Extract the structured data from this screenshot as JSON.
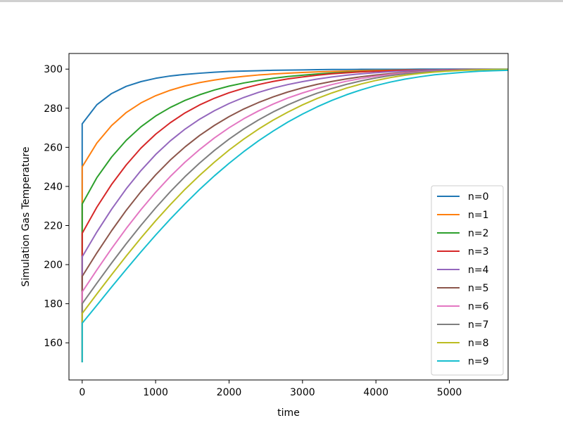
{
  "chart_data": {
    "type": "line",
    "title": "",
    "xlabel": "time",
    "ylabel": "Simulation Gas Temperature",
    "xlim": [
      -180,
      5800
    ],
    "ylim": [
      141,
      308
    ],
    "xticks": [
      0,
      1000,
      2000,
      3000,
      4000,
      5000
    ],
    "yticks": [
      160,
      180,
      200,
      220,
      240,
      260,
      280,
      300
    ],
    "xtick_labels": [
      "0",
      "1000",
      "2000",
      "3000",
      "4000",
      "5000"
    ],
    "ytick_labels": [
      "160",
      "180",
      "200",
      "220",
      "240",
      "260",
      "280",
      "300"
    ],
    "grid": false,
    "legend_position": "lower right",
    "x": [
      0,
      200,
      400,
      600,
      800,
      1000,
      1200,
      1400,
      1600,
      1800,
      2000,
      2200,
      2400,
      2600,
      2800,
      3000,
      3200,
      3400,
      3600,
      3800,
      4000,
      4200,
      4400,
      4600,
      4800,
      5000,
      5200,
      5400,
      5600,
      5800
    ],
    "series": [
      {
        "name": "n=0",
        "color": "#1f77b4",
        "start": 150,
        "values": [
          272,
          281.8,
          287.5,
          291.2,
          293.6,
          295.3,
          296.5,
          297.3,
          297.9,
          298.4,
          298.8,
          299.0,
          299.2,
          299.4,
          299.5,
          299.6,
          299.7,
          299.8,
          299.8,
          299.9,
          299.9,
          299.9,
          299.9,
          300.0,
          300.0,
          300.0,
          300.0,
          300.0,
          300.0,
          300.0
        ]
      },
      {
        "name": "n=1",
        "color": "#ff7f0e",
        "start": 150,
        "values": [
          250,
          262.2,
          271.1,
          277.8,
          282.7,
          286.4,
          289.2,
          291.4,
          293.1,
          294.4,
          295.5,
          296.3,
          297.0,
          297.5,
          297.9,
          298.3,
          298.6,
          298.8,
          299.0,
          299.2,
          299.3,
          299.4,
          299.5,
          299.6,
          299.6,
          299.7,
          299.7,
          299.8,
          299.8,
          299.8
        ]
      },
      {
        "name": "n=2",
        "color": "#2ca02c",
        "start": 150,
        "values": [
          231,
          244.5,
          255.0,
          263.6,
          270.5,
          276.0,
          280.4,
          284.0,
          286.9,
          289.3,
          291.3,
          292.9,
          294.2,
          295.3,
          296.2,
          296.9,
          297.5,
          298.0,
          298.4,
          298.7,
          299.0,
          299.2,
          299.3,
          299.5,
          299.6,
          299.7,
          299.7,
          299.8,
          299.8,
          299.9
        ]
      },
      {
        "name": "n=3",
        "color": "#d62728",
        "start": 150,
        "values": [
          216,
          229.4,
          241.0,
          251.0,
          259.6,
          266.7,
          272.6,
          277.6,
          281.7,
          285.1,
          287.9,
          290.2,
          292.1,
          293.7,
          295.0,
          296.0,
          296.9,
          297.6,
          298.1,
          298.6,
          298.9,
          299.2,
          299.4,
          299.5,
          299.6,
          299.7,
          299.8,
          299.8,
          299.9,
          299.9
        ]
      },
      {
        "name": "n=4",
        "color": "#9467bd",
        "start": 150,
        "values": [
          204,
          216.7,
          228.3,
          238.8,
          248.1,
          256.3,
          263.3,
          269.3,
          274.4,
          278.7,
          282.4,
          285.5,
          288.1,
          290.3,
          292.1,
          293.6,
          294.9,
          296.0,
          296.9,
          297.6,
          298.2,
          298.7,
          299.0,
          299.3,
          299.5,
          299.6,
          299.7,
          299.8,
          299.8,
          299.9
        ]
      },
      {
        "name": "n=5",
        "color": "#8c564b",
        "start": 150,
        "values": [
          194,
          206.0,
          217.3,
          227.8,
          237.3,
          245.9,
          253.5,
          260.2,
          266.1,
          271.2,
          275.7,
          279.6,
          282.9,
          285.8,
          288.3,
          290.4,
          292.2,
          293.7,
          295.0,
          296.1,
          297.0,
          297.7,
          298.3,
          298.8,
          299.1,
          299.4,
          299.6,
          299.7,
          299.8,
          299.9
        ]
      },
      {
        "name": "n=6",
        "color": "#e377c2",
        "start": 150,
        "values": [
          186,
          197.3,
          208.2,
          218.5,
          228.1,
          237.0,
          245.1,
          252.4,
          258.9,
          264.8,
          270.0,
          274.6,
          278.6,
          282.1,
          285.2,
          287.8,
          290.1,
          292.1,
          293.8,
          295.2,
          296.4,
          297.3,
          298.0,
          298.6,
          299.0,
          299.3,
          299.5,
          299.7,
          299.8,
          299.9
        ]
      },
      {
        "name": "n=7",
        "color": "#7f7f7f",
        "start": 150,
        "values": [
          180,
          190.5,
          200.8,
          210.7,
          220.1,
          229.0,
          237.3,
          245.0,
          252.0,
          258.4,
          264.2,
          269.4,
          274.0,
          278.1,
          281.7,
          284.9,
          287.7,
          290.1,
          292.2,
          294.0,
          295.5,
          296.7,
          297.6,
          298.3,
          298.8,
          299.2,
          299.5,
          299.7,
          299.8,
          299.9
        ]
      },
      {
        "name": "n=8",
        "color": "#bcbd22",
        "start": 150,
        "values": [
          175,
          185.0,
          194.8,
          204.4,
          213.6,
          222.4,
          230.7,
          238.5,
          245.7,
          252.4,
          258.6,
          264.2,
          269.3,
          273.9,
          278.0,
          281.7,
          285.0,
          287.8,
          290.3,
          292.4,
          294.2,
          295.7,
          296.9,
          297.8,
          298.5,
          299.0,
          299.4,
          299.6,
          299.8,
          299.9
        ]
      },
      {
        "name": "n=9",
        "color": "#17becf",
        "start": 150,
        "values": [
          170,
          179.2,
          188.5,
          197.6,
          206.5,
          215.1,
          223.3,
          231.1,
          238.5,
          245.4,
          251.8,
          257.8,
          263.3,
          268.3,
          272.9,
          277.0,
          280.7,
          284.0,
          286.9,
          289.4,
          291.6,
          293.4,
          294.9,
          296.1,
          297.1,
          297.8,
          298.4,
          298.9,
          299.2,
          299.4
        ]
      }
    ]
  }
}
